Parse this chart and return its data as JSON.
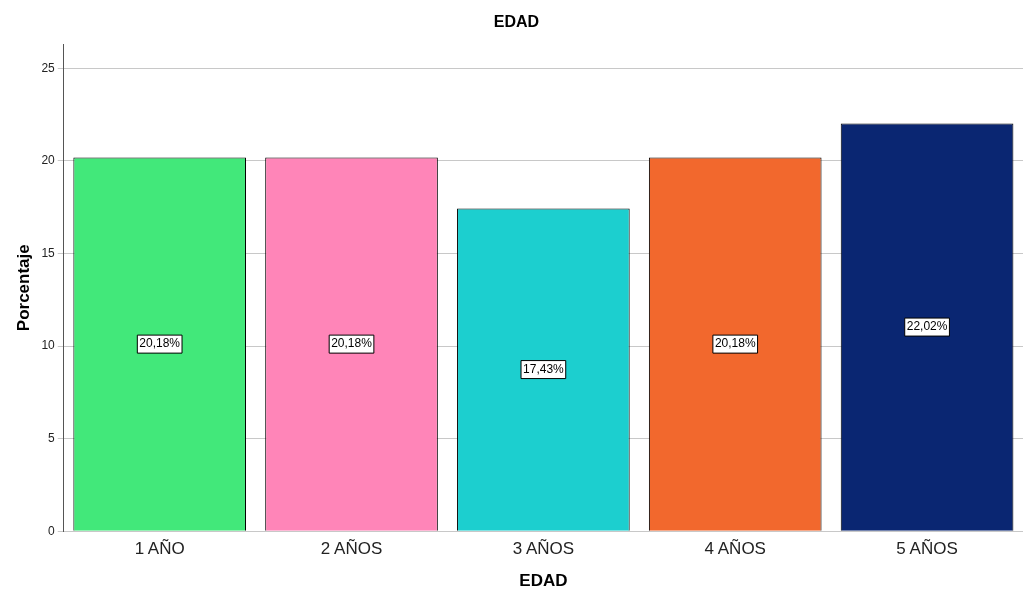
{
  "chart_data": {
    "type": "bar",
    "title": "EDAD",
    "xlabel": "EDAD",
    "ylabel": "Porcentaje",
    "categories": [
      "1 AÑO",
      "2 AÑOS",
      "3 AÑOS",
      "4 AÑOS",
      "5 AÑOS"
    ],
    "values": [
      20.18,
      20.18,
      17.43,
      20.18,
      22.02
    ],
    "colors": [
      "#42e87a",
      "#ff85b8",
      "#1ccfcf",
      "#f2682d",
      "#0a2672"
    ],
    "value_labels": [
      "20,18%",
      "20,18%",
      "17,43%",
      "20,18%",
      "22,02%"
    ],
    "ylim": [
      0,
      26.3
    ],
    "yticks": [
      0,
      5,
      10,
      15,
      20,
      25
    ],
    "grid": "y",
    "legend": false
  }
}
